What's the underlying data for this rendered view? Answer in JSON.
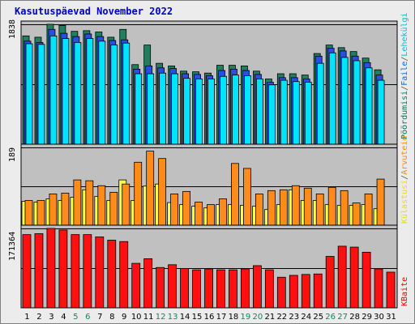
{
  "title": "Kasutuspäevad November 2022",
  "panel_max_labels": {
    "top": "1838",
    "middle": "189",
    "bottom": "171364"
  },
  "right_labels": {
    "top": [
      {
        "text": "Pöördumisi",
        "color": "#007a5a"
      },
      {
        "text": "/",
        "color": "#555555"
      },
      {
        "text": "Faile",
        "color": "#0b66e6"
      },
      {
        "text": "/",
        "color": "#555555"
      },
      {
        "text": "Lehekülgi",
        "color": "#00bfd4"
      }
    ],
    "middle": [
      {
        "text": "Külastusi",
        "color": "#e8e000"
      },
      {
        "text": "/",
        "color": "#555555"
      },
      {
        "text": "Arvuteid",
        "color": "#ff8c00"
      }
    ],
    "bottom": [
      {
        "text": "KBaite",
        "color": "#e00000"
      }
    ]
  },
  "colors": {
    "hits": "#1f8060",
    "files": "#2a4fe0",
    "pages": "#00e5ff",
    "visits": "#ffff40",
    "sites": "#ff8c1a",
    "kbytes": "#ff1010",
    "panel_bg": "#c0c0c0",
    "weekend_label": "#0a8a5a"
  },
  "chart_data": {
    "type": "bar",
    "title": "Kasutuspäevad November 2022",
    "categories": [
      "1",
      "2",
      "3",
      "4",
      "5",
      "6",
      "7",
      "8",
      "9",
      "10",
      "11",
      "12",
      "13",
      "14",
      "15",
      "16",
      "17",
      "18",
      "19",
      "20",
      "21",
      "22",
      "23",
      "24",
      "25",
      "26",
      "27",
      "28",
      "29",
      "30",
      "31"
    ],
    "weekend_categories": [
      "5",
      "6",
      "12",
      "13",
      "19",
      "20",
      "26",
      "27"
    ],
    "panels": [
      {
        "name": "top",
        "ylim": [
          0,
          1838
        ],
        "series": [
          {
            "name": "Pöördumisi",
            "values": [
              1660,
              1640,
              1838,
              1820,
              1730,
              1740,
              1720,
              1640,
              1760,
              1220,
              1520,
              1240,
              1200,
              1120,
              1110,
              1090,
              1210,
              1210,
              1200,
              1120,
              1000,
              1080,
              1080,
              1060,
              1390,
              1520,
              1480,
              1420,
              1320,
              1140,
              0
            ]
          },
          {
            "name": "Faile",
            "values": [
              1580,
              1560,
              1760,
              1700,
              1650,
              1690,
              1650,
              1590,
              1600,
              1150,
              1200,
              1170,
              1160,
              1080,
              1070,
              1050,
              1130,
              1150,
              1130,
              1070,
              950,
              1020,
              1020,
              1000,
              1350,
              1470,
              1430,
              1350,
              1250,
              1060,
              0
            ]
          },
          {
            "name": "Lehekülgi",
            "values": [
              1540,
              1530,
              1660,
              1620,
              1560,
              1620,
              1580,
              1520,
              1550,
              1080,
              1080,
              1090,
              1080,
              1010,
              1000,
              1000,
              1040,
              1060,
              1050,
              1000,
              910,
              980,
              960,
              950,
              1240,
              1400,
              1330,
              1280,
              1170,
              980,
              0
            ]
          }
        ]
      },
      {
        "name": "middle",
        "ylim": [
          0,
          189
        ],
        "series": [
          {
            "name": "Külastusi",
            "values": [
              58,
              56,
              64,
              60,
              68,
              86,
              70,
              60,
              110,
              60,
              95,
              100,
              55,
              50,
              46,
              42,
              50,
              50,
              48,
              46,
              38,
              50,
              86,
              60,
              60,
              50,
              48,
              48,
              50,
              40,
              0
            ]
          },
          {
            "name": "Arvuteid",
            "values": [
              60,
              60,
              76,
              78,
              110,
              108,
              96,
              80,
              100,
              153,
              180,
              162,
              76,
              82,
              56,
              50,
              64,
              150,
              138,
              76,
              84,
              86,
              96,
              90,
              76,
              92,
              84,
              54,
              76,
              112,
              0
            ]
          }
        ]
      },
      {
        "name": "bottom",
        "ylim": [
          0,
          171364
        ],
        "series": [
          {
            "name": "KBaite",
            "values": [
              158000,
              160000,
              171364,
              168000,
              158000,
              158000,
              153000,
              146000,
              143000,
              96000,
              106000,
              87000,
              93000,
              85000,
              82000,
              84000,
              82000,
              82000,
              84000,
              91000,
              82000,
              66000,
              70000,
              72000,
              73000,
              111000,
              133000,
              131000,
              120000,
              84000,
              77000
            ]
          }
        ]
      }
    ]
  }
}
